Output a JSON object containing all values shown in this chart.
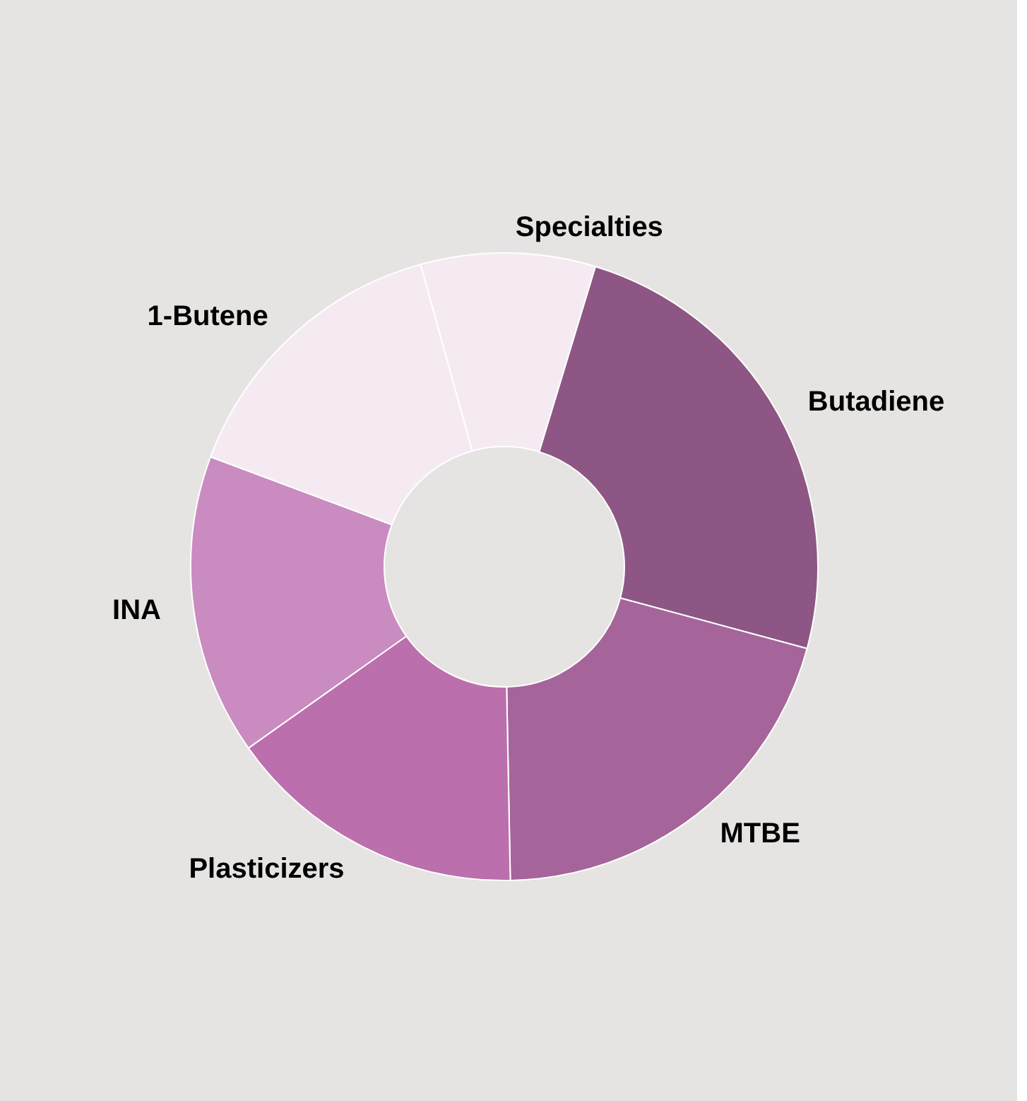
{
  "chart_data": {
    "type": "donut",
    "categories": [
      "Specialties",
      "Butadiene",
      "MTBE",
      "Plasticizers",
      "INA",
      "1-Butene"
    ],
    "values": [
      9,
      24.5,
      20.5,
      15.5,
      15.5,
      15
    ],
    "colors": [
      "#f5eaf2",
      "#8e5684",
      "#a5659a",
      "#bb6fac",
      "#c98bc0",
      "#f5eaf2"
    ],
    "legend": false
  }
}
